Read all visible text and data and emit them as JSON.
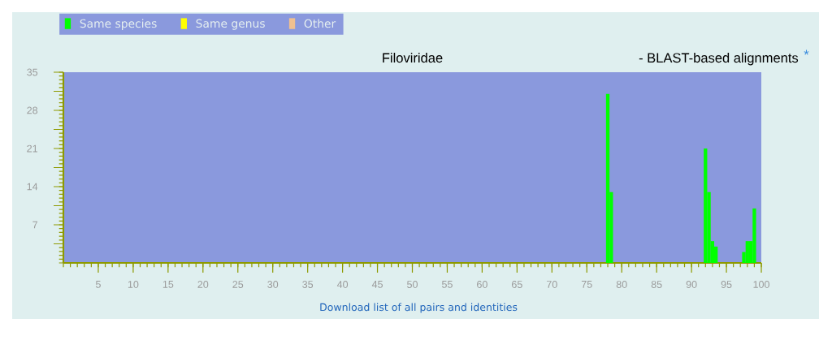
{
  "chart_data": {
    "type": "bar",
    "title": "Filoviridae",
    "subtitle": "- BLAST-based alignments",
    "annotations": [
      "*",
      "Download list of all pairs and identities"
    ],
    "x": [
      78,
      78.5,
      92,
      92.5,
      93,
      93.5,
      97.5,
      98,
      98.5,
      99
    ],
    "series": [
      {
        "name": "Same species",
        "color": "#00ff00",
        "values": [
          31,
          13,
          21,
          13,
          4,
          3,
          2,
          4,
          4,
          10
        ]
      },
      {
        "name": "Same genus",
        "color": "#ffff00",
        "values": [
          0,
          0,
          0,
          0,
          0,
          0,
          0,
          0,
          0,
          0
        ]
      },
      {
        "name": "Other",
        "color": "#f0c090",
        "values": [
          0,
          0,
          0,
          0,
          0,
          0,
          0,
          0,
          0,
          0
        ]
      }
    ],
    "legend": "top left",
    "xlim": [
      0,
      100
    ],
    "xticks": [
      5,
      10,
      15,
      20,
      25,
      30,
      35,
      40,
      45,
      50,
      55,
      60,
      65,
      70,
      75,
      80,
      85,
      90,
      95,
      100
    ],
    "ylim": [
      0,
      35
    ],
    "yticks": [
      {
        "value": 3.5,
        "label": null
      },
      7,
      {
        "value": 10.5,
        "label": null
      },
      14,
      {
        "value": 17.5,
        "label": null
      },
      21,
      {
        "value": 24.5,
        "label": null
      },
      28,
      {
        "value": 31.5,
        "label": null
      },
      35
    ]
  }
}
